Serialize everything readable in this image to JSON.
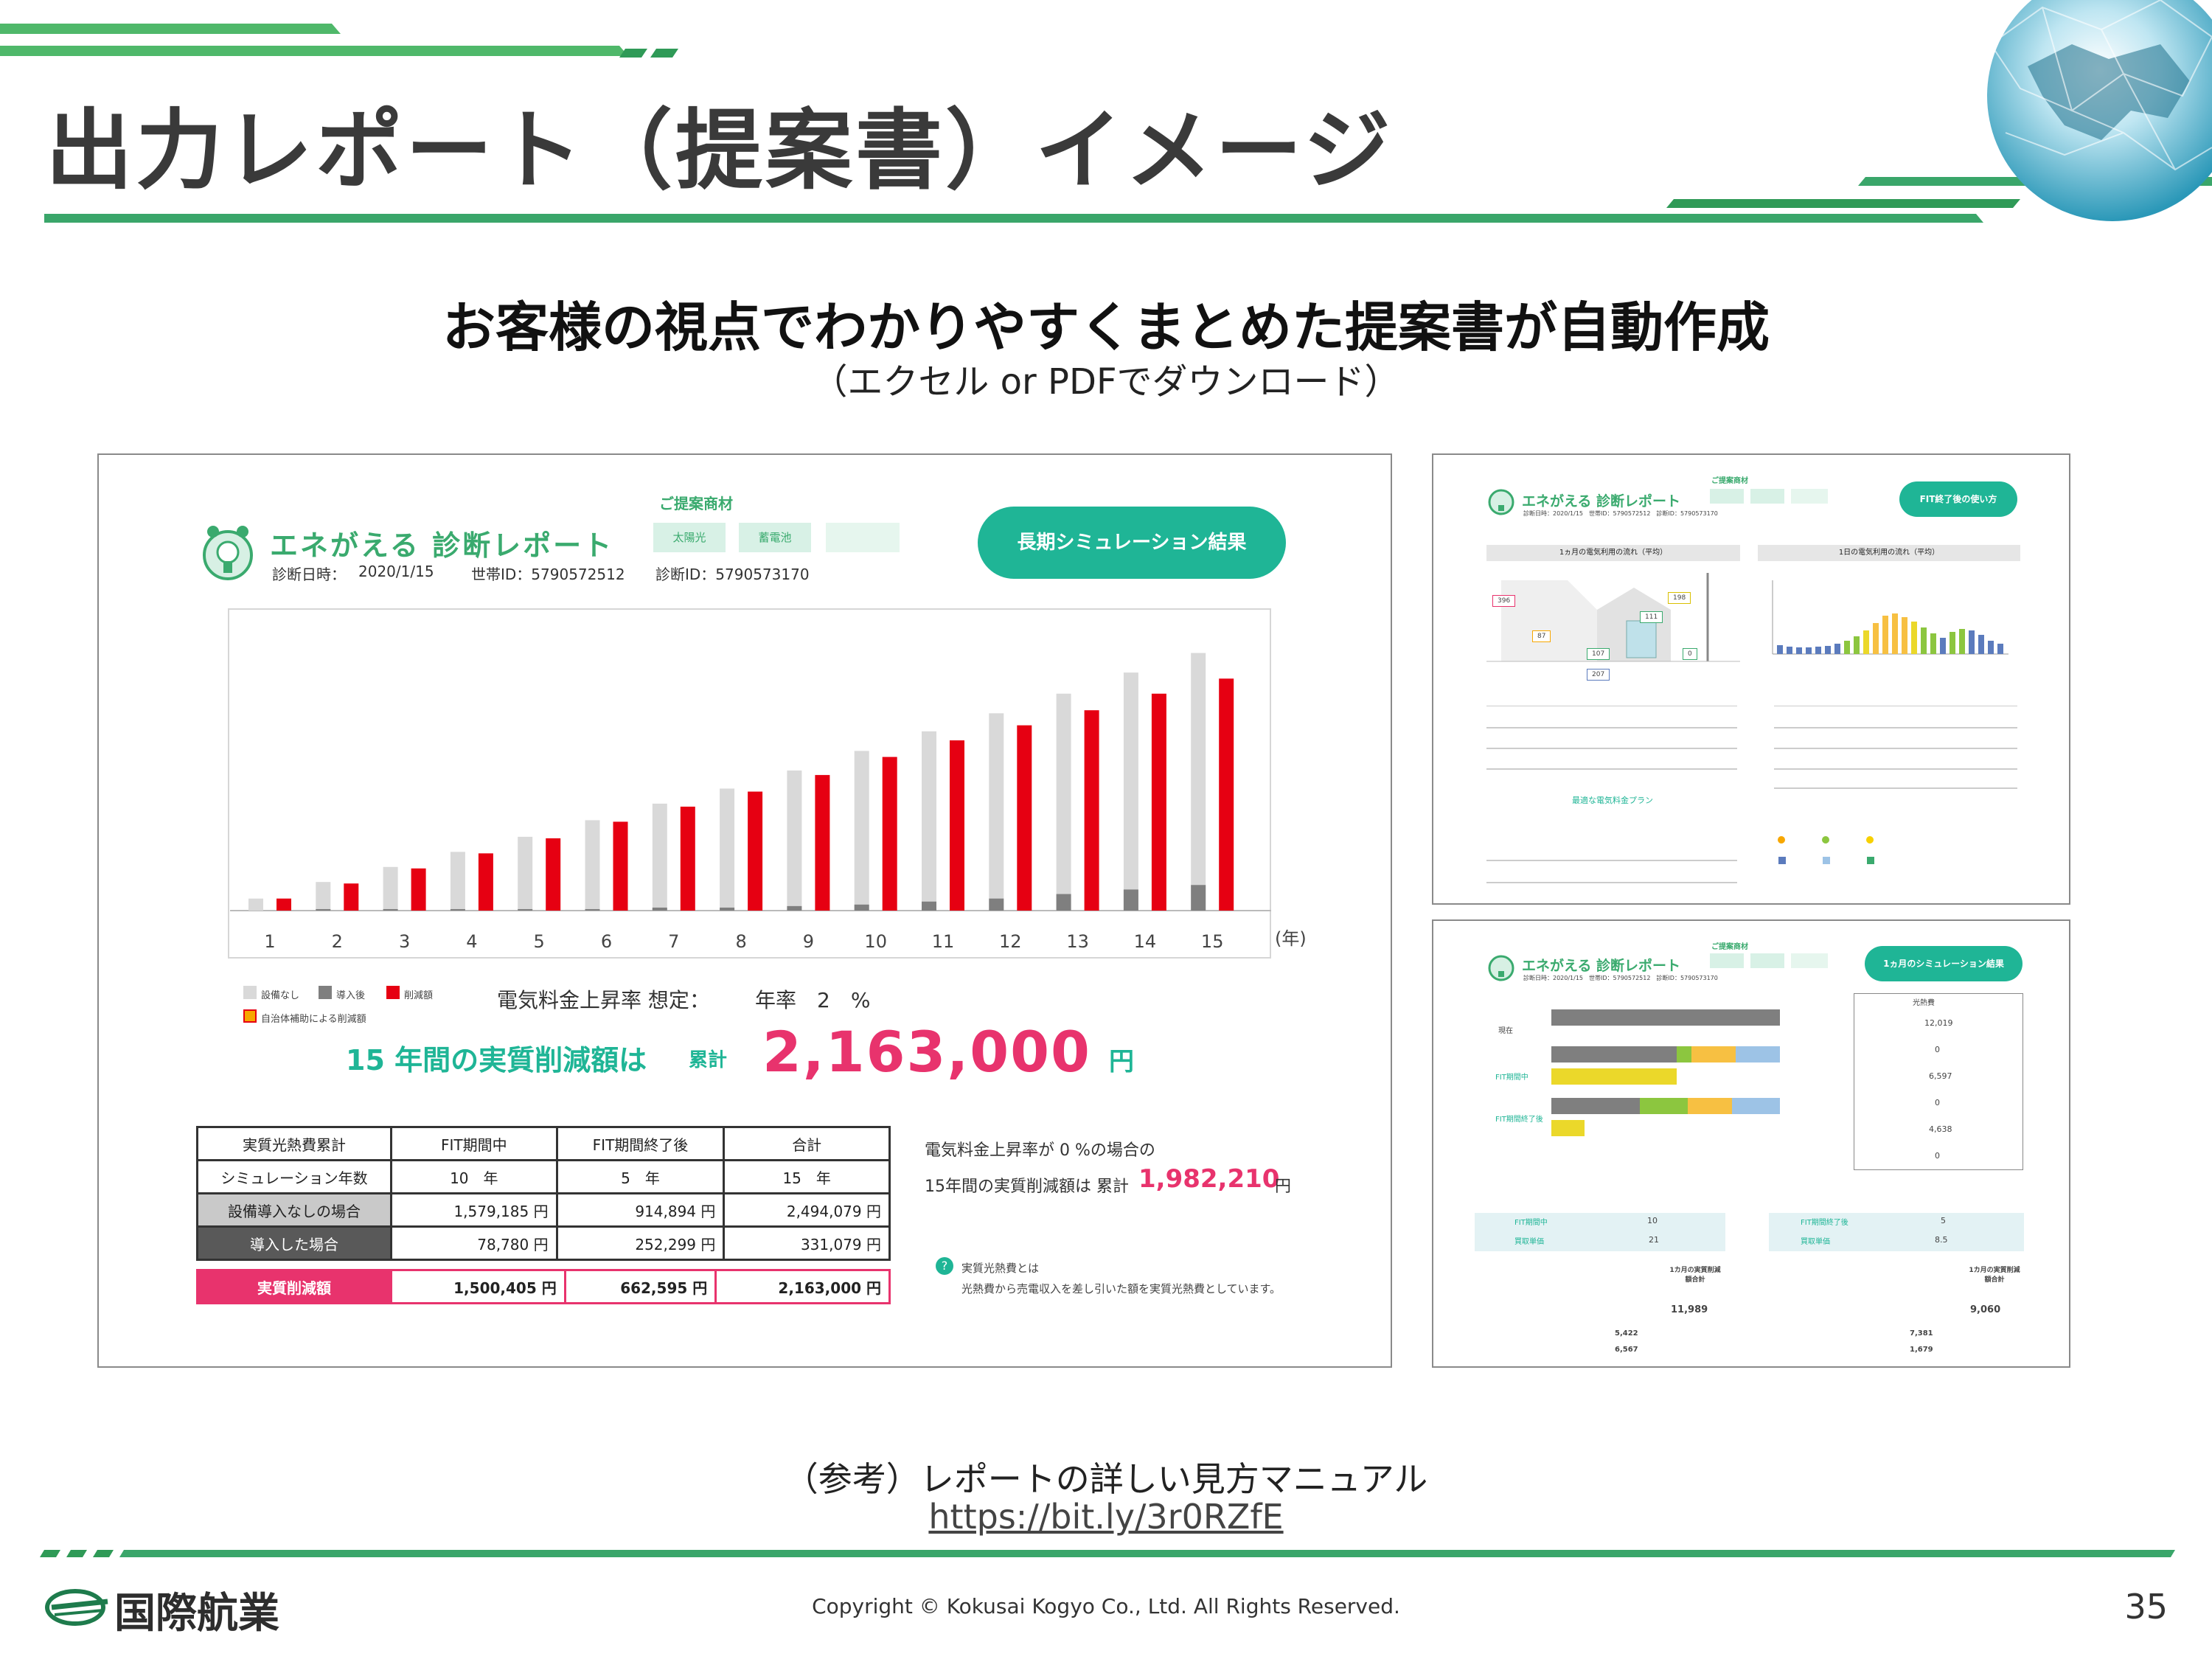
{
  "slide": {
    "title": "出力レポート（提案書）イメージ",
    "subtitle": "お客様の視点でわかりやすくまとめた提案書が自動作成",
    "subtitle_note": "（エクセル or PDFでダウンロード）",
    "reference": "（参考）レポートの詳しい見方マニュアル",
    "url": "https://bit.ly/3r0RZfE",
    "copyright": "Copyright © Kokusai Kogyo Co., Ltd. All Rights Reserved.",
    "page_number": "35",
    "company": "国際航業"
  },
  "colors": {
    "green": "#3aaa6e",
    "teal": "#1fb596",
    "red": "#e60012",
    "pink": "#e8336d",
    "gray_bar": "#d9d9d9",
    "dark_bar": "#7f7f7f"
  },
  "main_report": {
    "app_name": "エネがえる 診断レポート",
    "date_label": "診断日時：",
    "date": "2020/1/15",
    "household_id": "世帯ID：5790572512",
    "diagnosis_id": "診断ID：5790573170",
    "proposal_label": "ご提案商材",
    "product_1": "太陽光",
    "product_2": "蓄電池",
    "badge": "長期シミュレーション結果",
    "year_unit": "(年)",
    "legend_none": "設備なし",
    "legend_after": "導入後",
    "legend_reduction": "削減額",
    "legend_subsidy": "自治体補助による削減額",
    "rate_label": "電気料金上昇率 想定：",
    "rate_value": "年率　2　%",
    "summary_label": "15 年間の実質削減額は",
    "summary_cumulative": "累計",
    "summary_value": "2,163,000",
    "summary_unit": "円",
    "table": {
      "headers": [
        "実質光熱費累計",
        "FIT期間中",
        "FIT期間終了後",
        "合計"
      ],
      "rows": [
        [
          "シミュレーション年数",
          "10　年",
          "5　年",
          "15　年"
        ],
        [
          "設備導入なしの場合",
          "1,579,185 円",
          "914,894 円",
          "2,494,079 円"
        ],
        [
          "導入した場合",
          "78,780 円",
          "252,299 円",
          "331,079 円"
        ]
      ],
      "total": [
        "実質削減額",
        "1,500,405 円",
        "662,595 円",
        "2,163,000 円"
      ]
    },
    "zero_rate_note": "電気料金上昇率が 0 %の場合の",
    "zero_rate_label": "15年間の実質削減額は 累計",
    "zero_rate_value": "1,982,210",
    "zero_rate_unit": "円",
    "footnote_title": "実質光熱費とは",
    "footnote_text": "光熱費から売電収入を差し引いた額を実質光熱費としています。"
  },
  "chart_data": {
    "type": "bar",
    "categories": [
      "1",
      "2",
      "3",
      "4",
      "5",
      "6",
      "7",
      "8",
      "9",
      "10",
      "11",
      "12",
      "13",
      "14",
      "15"
    ],
    "xlabel": "(年)",
    "series": [
      {
        "name": "設備なし",
        "values": [
          8,
          19,
          29,
          39,
          49,
          60,
          71,
          81,
          93,
          106,
          119,
          131,
          144,
          158,
          171
        ]
      },
      {
        "name": "導入後",
        "values": [
          0,
          1,
          1,
          1,
          1,
          1,
          2,
          2,
          3,
          4,
          6,
          8,
          11,
          14,
          17
        ]
      },
      {
        "name": "削減額",
        "values": [
          8,
          18,
          28,
          38,
          48,
          59,
          69,
          79,
          90,
          102,
          113,
          123,
          133,
          144,
          154
        ]
      }
    ],
    "ylim": [
      0,
      185
    ]
  },
  "report_top_right": {
    "app_name": "エネがえる 診断レポート",
    "meta": "診断日時：2020/1/15　世帯ID：5790572512　診断ID：5790573170",
    "proposal_label": "ご提案商材",
    "badge": "FIT終了後の使い方",
    "panel_left_title": "1ヵ月の電気利用の流れ（平均）",
    "panel_right_title": "1日の電気利用の流れ（平均）",
    "flow_values": [
      "396",
      "198",
      "111",
      "87",
      "107",
      "0",
      "207"
    ],
    "plan_label": "最適な電気料金プラン"
  },
  "report_bottom_right": {
    "app_name": "エネがえる 診断レポート",
    "meta": "診断日時：2020/1/15　世帯ID：5790572512　診断ID：5790573170",
    "proposal_label": "ご提案商材",
    "badge": "1ヵ月のシミュレーション結果",
    "row_now": "現在",
    "row_fit": "FIT期間中",
    "row_fit_end": "FIT期間終了後",
    "cost_title": "光熱費",
    "cost_values": [
      "12,019",
      "0",
      "6,597",
      "0",
      "4,638",
      "0"
    ],
    "fit_period_label": "FIT期間中",
    "fit_period_value": "10",
    "fit_end_label": "FIT期間終了後",
    "fit_end_value": "5",
    "unit_price_label": "買取単価",
    "unit_price_fit": "21",
    "unit_price_end": "8.5",
    "monthly_total_label": "1カ月の実質削減額合計",
    "monthly_total_fit": "11,989",
    "monthly_total_end": "9,060",
    "sub_total_fit": "5,422",
    "sale_fit": "6,567",
    "sub_total_end": "7,381",
    "sale_end": "1,679"
  }
}
